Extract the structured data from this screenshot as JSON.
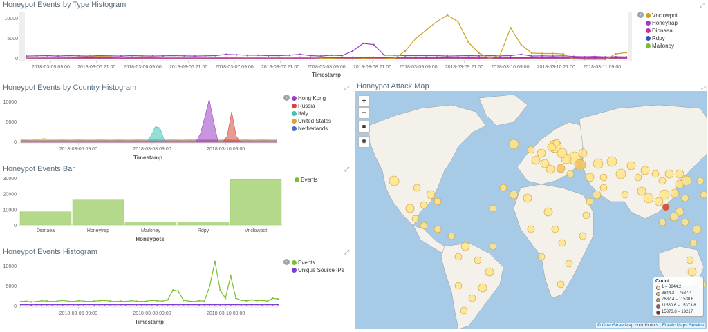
{
  "panels": {
    "type_hist": {
      "title": "Honeypot Events by Type Histogram",
      "axis_title": "Timestamp",
      "y_ticks": [
        "10000",
        "5000",
        "0"
      ],
      "x_ticks": [
        "2018-03-05 09:00",
        "2018-03-05 21:00",
        "2018-03-06 09:00",
        "2018-03-06 21:00",
        "2018-03-07 09:00",
        "2018-03-07 21:00",
        "2018-03-08 09:00",
        "2018-03-08 21:00",
        "2018-03-09 09:00",
        "2018-03-09 21:00",
        "2018-03-10 09:00",
        "2018-03-10 21:00",
        "2018-03-11 09:00"
      ],
      "legend": [
        {
          "label": "Vnclowpot",
          "color": "#c9a227"
        },
        {
          "label": "Honeytrap",
          "color": "#9b3fc9"
        },
        {
          "label": "Dionaea",
          "color": "#c42fa8"
        },
        {
          "label": "Rdpy",
          "color": "#3a4fbf"
        },
        {
          "label": "Mailoney",
          "color": "#79c12a"
        }
      ]
    },
    "country_hist": {
      "title": "Honeypot Events by Country Histogram",
      "axis_title": "Timestamp",
      "y_ticks": [
        "10000",
        "5000",
        "0"
      ],
      "x_ticks": [
        "2018-03-06 09:00",
        "2018-03-08 09:00",
        "2018-03-10 09:00"
      ],
      "legend": [
        {
          "label": "Hong Kong",
          "color": "#9b3fc9"
        },
        {
          "label": "Russia",
          "color": "#d6483c"
        },
        {
          "label": "Italy",
          "color": "#3fc2b4"
        },
        {
          "label": "United States",
          "color": "#e0a040"
        },
        {
          "label": "Netherlands",
          "color": "#4a6fc0"
        }
      ]
    },
    "bar": {
      "title": "Honeypot Events Bar",
      "axis_title": "Honeypots",
      "y_ticks": [
        "30000",
        "20000",
        "10000",
        "0"
      ],
      "legend": [
        {
          "label": "Events",
          "color": "#79c12a"
        }
      ]
    },
    "events_hist": {
      "title": "Honeypot Events Histogram",
      "axis_title": "Timestamp",
      "y_ticks": [
        "10000",
        "5000",
        "0"
      ],
      "x_ticks": [
        "2018-03-06 09:00",
        "2018-03-08 09:00",
        "2018-03-10 09:00"
      ],
      "legend": [
        {
          "label": "Events",
          "color": "#79c12a"
        },
        {
          "label": "Unique Source IPs",
          "color": "#7a3fd1"
        }
      ]
    },
    "map": {
      "title": "Honeypot Attack Map",
      "controls": [
        "+",
        "−",
        "■",
        "⌗"
      ],
      "legend_title": "Count",
      "legend_rows": [
        {
          "label": "1 – 3844.2",
          "color": "#ffe58a"
        },
        {
          "label": "3844.2 – 7687.4",
          "color": "#f6c45a"
        },
        {
          "label": "7687.4 – 11530.6",
          "color": "#f08a3c"
        },
        {
          "label": "11530.6 – 15373.8",
          "color": "#d8402a"
        },
        {
          "label": "15373.8 – 19217",
          "color": "#a5161a"
        }
      ],
      "attribution_prefix": "© ",
      "attribution_osm": "OpenStreetMap",
      "attribution_mid": " contributors , ",
      "attribution_ems": "Elastic Maps Service"
    }
  },
  "chart_data": [
    {
      "type": "line",
      "title": "Honeypot Events by Type Histogram",
      "xlabel": "Timestamp",
      "ylim": [
        0,
        11000
      ],
      "series": [
        {
          "name": "Vnclowpot",
          "values": [
            400,
            450,
            500,
            480,
            520,
            600,
            650,
            700,
            600,
            500,
            550,
            600,
            550,
            500,
            450,
            500,
            480,
            450,
            500,
            520,
            500,
            480,
            500,
            450,
            500,
            480,
            520,
            500,
            300,
            200,
            150,
            100,
            200,
            150,
            150,
            300,
            2000,
            5000,
            7000,
            9000,
            10500,
            9000,
            4000,
            1500,
            300,
            1000,
            7500,
            3500,
            1500,
            1400,
            1400,
            1300,
            100,
            0,
            0,
            0,
            1300,
            1600
          ]
        },
        {
          "name": "Honeytrap",
          "values": [
            800,
            850,
            900,
            800,
            900,
            850,
            800,
            900,
            850,
            800,
            900,
            850,
            800,
            850,
            900,
            850,
            800,
            850,
            900,
            1200,
            1100,
            1000,
            1000,
            900,
            900,
            1000,
            1200,
            900,
            800,
            1000,
            900,
            2000,
            3800,
            3500,
            1000,
            1000,
            900,
            900,
            900,
            900,
            800,
            850,
            900,
            850,
            900,
            850,
            900,
            1200,
            800,
            850,
            800,
            850,
            700,
            650,
            700,
            600,
            650,
            600
          ]
        },
        {
          "name": "Dionaea",
          "values": [
            300,
            350,
            300,
            320,
            330,
            300,
            310,
            300,
            320,
            300,
            310,
            300,
            320,
            300,
            310,
            300,
            320,
            300,
            310,
            300,
            320,
            300,
            310,
            300,
            320,
            300,
            310,
            300,
            320,
            300,
            310,
            300,
            320,
            300,
            310,
            300,
            320,
            300,
            310,
            300,
            320,
            300,
            310,
            300,
            320,
            300,
            310,
            300,
            320,
            300,
            310,
            300,
            320,
            300,
            310,
            300,
            320,
            300
          ]
        },
        {
          "name": "Rdpy",
          "values": [
            500,
            520,
            480,
            510,
            490,
            500,
            520,
            480,
            510,
            490,
            500,
            520,
            480,
            510,
            490,
            500,
            520,
            480,
            510,
            490,
            500,
            520,
            480,
            510,
            490,
            500,
            520,
            480,
            510,
            490,
            500,
            520,
            480,
            510,
            490,
            500,
            520,
            480,
            510,
            490,
            500,
            520,
            480,
            510,
            490,
            500,
            520,
            480,
            510,
            490,
            500,
            520,
            480,
            510,
            490,
            500,
            520,
            480
          ]
        },
        {
          "name": "Mailoney",
          "values": [
            200,
            210,
            190,
            200,
            210,
            190,
            200,
            210,
            190,
            200,
            210,
            190,
            200,
            210,
            190,
            200,
            210,
            190,
            200,
            210,
            190,
            200,
            210,
            190,
            200,
            210,
            190,
            200,
            210,
            190,
            200,
            210,
            190,
            200,
            210,
            190,
            200,
            210,
            190,
            200,
            210,
            190,
            200,
            210,
            190,
            200,
            210,
            190,
            200,
            210,
            190,
            200,
            210,
            190,
            200,
            210,
            190,
            200
          ]
        }
      ]
    },
    {
      "type": "area",
      "title": "Honeypot Events by Country Histogram",
      "xlabel": "Timestamp",
      "ylim": [
        0,
        11000
      ],
      "series": [
        {
          "name": "Hong Kong",
          "values": [
            0,
            0,
            0,
            0,
            0,
            0,
            0,
            0,
            0,
            0,
            0,
            0,
            0,
            0,
            0,
            0,
            0,
            0,
            0,
            0,
            0,
            0,
            0,
            0,
            0,
            0,
            0,
            0,
            0,
            0,
            0,
            0,
            0,
            0,
            0,
            0,
            0,
            0,
            0,
            0,
            2000,
            6000,
            10500,
            5000,
            0,
            0,
            0,
            0,
            0,
            0,
            0,
            0,
            0,
            0,
            0,
            0,
            0,
            0
          ]
        },
        {
          "name": "Russia",
          "values": [
            0,
            0,
            0,
            0,
            0,
            0,
            0,
            0,
            0,
            0,
            0,
            0,
            0,
            0,
            0,
            0,
            0,
            0,
            0,
            0,
            0,
            0,
            0,
            0,
            0,
            0,
            0,
            0,
            0,
            0,
            0,
            0,
            0,
            0,
            0,
            0,
            0,
            0,
            0,
            0,
            0,
            0,
            0,
            0,
            0,
            0,
            1500,
            7500,
            1500,
            0,
            0,
            0,
            0,
            0,
            0,
            0,
            0,
            0
          ]
        },
        {
          "name": "Italy",
          "values": [
            0,
            0,
            0,
            0,
            0,
            0,
            0,
            0,
            0,
            0,
            0,
            0,
            0,
            0,
            0,
            0,
            0,
            0,
            0,
            0,
            0,
            0,
            0,
            0,
            0,
            0,
            0,
            0,
            0,
            1500,
            3800,
            3500,
            500,
            0,
            0,
            0,
            0,
            0,
            0,
            0,
            0,
            0,
            0,
            0,
            0,
            0,
            0,
            0,
            0,
            0,
            0,
            0,
            0,
            0,
            0,
            0,
            0,
            0
          ]
        },
        {
          "name": "United States",
          "values": [
            600,
            700,
            800,
            650,
            700,
            900,
            800,
            700,
            750,
            650,
            700,
            800,
            700,
            650,
            700,
            750,
            800,
            700,
            650,
            700,
            750,
            700,
            650,
            700,
            800,
            700,
            650,
            700,
            750,
            700,
            650,
            700,
            800,
            700,
            650,
            700,
            750,
            700,
            650,
            700,
            750,
            700,
            650,
            700,
            800,
            700,
            650,
            700,
            750,
            700,
            650,
            700,
            750,
            700,
            650,
            700,
            750,
            700
          ]
        },
        {
          "name": "Netherlands",
          "values": [
            400,
            450,
            400,
            420,
            430,
            400,
            410,
            400,
            420,
            400,
            410,
            400,
            420,
            400,
            410,
            400,
            420,
            400,
            410,
            400,
            420,
            400,
            410,
            400,
            420,
            400,
            410,
            400,
            420,
            400,
            410,
            400,
            420,
            400,
            410,
            400,
            420,
            400,
            410,
            400,
            420,
            400,
            410,
            400,
            420,
            400,
            410,
            400,
            420,
            400,
            410,
            400,
            420,
            400,
            410,
            400,
            420,
            400
          ]
        }
      ]
    },
    {
      "type": "bar",
      "title": "Honeypot Events Bar",
      "xlabel": "Honeypots",
      "categories": [
        "Dionaea",
        "Honeytrap",
        "Mailoney",
        "Rdpy",
        "Vnclowpot"
      ],
      "values": [
        8500,
        16000,
        2000,
        2000,
        29000
      ],
      "ylim": [
        0,
        30000
      ],
      "series": [
        {
          "name": "Events",
          "values": [
            8500,
            16000,
            2000,
            2000,
            29000
          ]
        }
      ]
    },
    {
      "type": "line",
      "title": "Honeypot Events Histogram",
      "xlabel": "Timestamp",
      "ylim": [
        0,
        11000
      ],
      "series": [
        {
          "name": "Events",
          "values": [
            1200,
            1300,
            1100,
            1200,
            1400,
            1300,
            1200,
            1300,
            1500,
            1300,
            1200,
            1400,
            1300,
            1200,
            1300,
            1400,
            1500,
            1300,
            1200,
            1300,
            1200,
            1400,
            1300,
            1200,
            1300,
            1500,
            1400,
            1300,
            1600,
            4000,
            3800,
            1500,
            1300,
            1200,
            1400,
            1300,
            5000,
            11000,
            4000,
            2000,
            7500,
            2000,
            1500,
            1400,
            1600,
            1400,
            1500,
            1300,
            2000,
            1800
          ]
        },
        {
          "name": "Unique Source IPs",
          "values": [
            400,
            420,
            380,
            410,
            400,
            420,
            390,
            410,
            400,
            420,
            390,
            410,
            400,
            420,
            390,
            410,
            400,
            420,
            390,
            410,
            400,
            420,
            390,
            410,
            400,
            420,
            390,
            410,
            400,
            420,
            390,
            410,
            400,
            420,
            390,
            410,
            400,
            420,
            390,
            410,
            400,
            420,
            390,
            410,
            400,
            420,
            390,
            410,
            400,
            420
          ]
        }
      ]
    }
  ]
}
